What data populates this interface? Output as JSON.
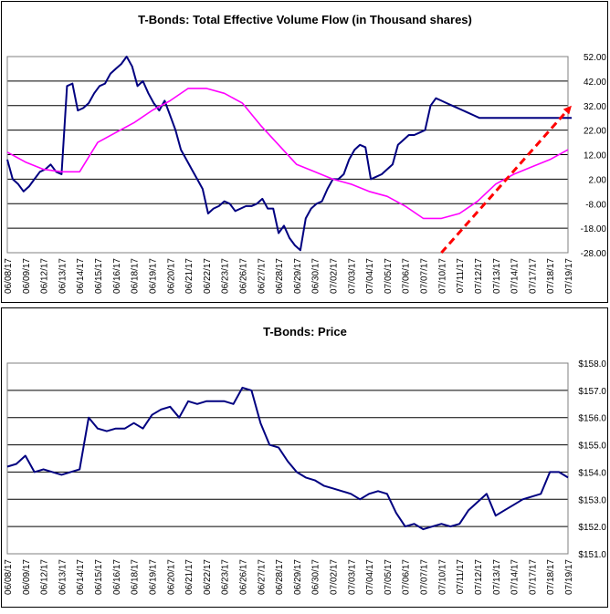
{
  "chart_data": [
    {
      "type": "line",
      "title": "T-Bonds: Total Effective Volume Flow (in Thousand shares)",
      "xlabel": "",
      "ylabel": "",
      "ylim": [
        -28,
        52
      ],
      "y_ticks": [
        "52.00",
        "42.00",
        "32.00",
        "22.00",
        "12.00",
        "2.00",
        "-8.00",
        "-18.00",
        "-28.00"
      ],
      "y_tick_values": [
        52,
        42,
        32,
        22,
        12,
        2,
        -8,
        -18,
        -28
      ],
      "y_axis_side": "right",
      "grid": "horizontal",
      "x_tick_labels": [
        "06/08/17",
        "06/09/17",
        "06/12/17",
        "06/13/17",
        "06/14/17",
        "06/15/17",
        "06/16/17",
        "06/18/17",
        "06/19/17",
        "06/20/17",
        "06/21/17",
        "06/22/17",
        "06/23/17",
        "06/26/17",
        "06/27/17",
        "06/28/17",
        "06/29/17",
        "06/30/17",
        "07/02/17",
        "07/03/17",
        "07/04/17",
        "07/05/17",
        "07/06/17",
        "07/07/17",
        "07/10/17",
        "07/11/17",
        "07/12/17",
        "07/13/17",
        "07/14/17",
        "07/17/17",
        "07/18/17",
        "07/19/17"
      ],
      "series": [
        {
          "color": "#000080",
          "x": [
            0,
            0.3,
            0.6,
            0.9,
            1.2,
            1.5,
            1.8,
            2.1,
            2.4,
            2.7,
            3,
            3.3,
            3.6,
            3.9,
            4.2,
            4.5,
            4.8,
            5.1,
            5.4,
            5.7,
            6,
            6.3,
            6.6,
            6.9,
            7.2,
            7.5,
            7.8,
            8.1,
            8.4,
            8.7,
            9,
            9.3,
            9.6,
            9.9,
            10.2,
            10.5,
            10.8,
            11.1,
            11.4,
            11.7,
            12,
            12.3,
            12.6,
            12.9,
            13.2,
            13.5,
            13.8,
            14.1,
            14.4,
            14.7,
            15,
            15.3,
            15.6,
            15.9,
            16.2,
            16.5,
            16.8,
            17.1,
            17.4,
            17.7,
            18,
            18.3,
            18.6,
            18.9,
            19.2,
            19.5,
            19.8,
            20.1,
            20.4,
            20.7,
            21,
            21.3,
            21.6,
            21.9,
            22.2,
            22.5,
            22.8,
            23.1,
            23.4,
            23.7,
            24,
            24.3,
            24.6,
            24.9,
            25.2,
            25.5,
            25.8,
            26.1,
            26.4,
            26.7,
            27,
            27.3,
            27.6,
            27.9,
            28.2,
            28.5,
            28.8,
            29.1,
            29.4,
            29.7,
            30,
            30.3,
            30.6,
            30.9,
            31.2
          ],
          "values": [
            10,
            2,
            0,
            -3,
            -1,
            2,
            5,
            6,
            8,
            5,
            4,
            40,
            41,
            30,
            31,
            33,
            37,
            40,
            41,
            45,
            47,
            49,
            52,
            48,
            40,
            42,
            37,
            33,
            30,
            34,
            28,
            22,
            14,
            10,
            6,
            2,
            -2,
            -12,
            -10,
            -9,
            -7,
            -8,
            -11,
            -10,
            -9,
            -9,
            -8,
            -6,
            -10,
            -10,
            -20,
            -17,
            -22,
            -25,
            -27,
            -14,
            -10,
            -8,
            -7,
            -2,
            2,
            2,
            4,
            10,
            14,
            16,
            15,
            2,
            3,
            4,
            6,
            8,
            16,
            18,
            20,
            20,
            21,
            22,
            32,
            35,
            34,
            33,
            32,
            31,
            30,
            29,
            28,
            27,
            27,
            27,
            27,
            27,
            27,
            27,
            27,
            27,
            27,
            27,
            27,
            27,
            27,
            27,
            27,
            27,
            27
          ]
        },
        {
          "color": "#ff00ff",
          "x": [
            0,
            1,
            2,
            3,
            4,
            5,
            6,
            7,
            8,
            9,
            10,
            11,
            12,
            13,
            14,
            15,
            16,
            17,
            18,
            19,
            20,
            21,
            22,
            23,
            24,
            25,
            26,
            27,
            28,
            29,
            30,
            31
          ],
          "values": [
            13,
            9,
            6,
            5,
            5,
            17,
            21,
            25,
            30,
            34,
            39,
            39,
            37,
            33,
            24,
            16,
            8,
            5,
            2,
            0,
            -3,
            -5,
            -9,
            -14,
            -14,
            -12,
            -7,
            0,
            4,
            7,
            10,
            14
          ]
        }
      ],
      "annotations": [
        {
          "type": "dashed-arrow",
          "color": "#ff0000",
          "from": [
            24.0,
            -28
          ],
          "to": [
            31.2,
            32
          ]
        }
      ]
    },
    {
      "type": "line",
      "title": "T-Bonds: Price",
      "xlabel": "",
      "ylabel": "",
      "ylim": [
        151,
        158
      ],
      "y_ticks": [
        "$158.0",
        "$157.0",
        "$156.0",
        "$155.0",
        "$154.0",
        "$153.0",
        "$152.0",
        "$151.0"
      ],
      "y_tick_values": [
        158,
        157,
        156,
        155,
        154,
        153,
        152,
        151
      ],
      "y_axis_side": "right",
      "grid": "horizontal",
      "x_tick_labels": [
        "06/08/17",
        "06/09/17",
        "06/12/17",
        "06/13/17",
        "06/14/17",
        "06/15/17",
        "06/16/17",
        "06/18/17",
        "06/19/17",
        "06/20/17",
        "06/21/17",
        "06/22/17",
        "06/23/17",
        "06/26/17",
        "06/27/17",
        "06/28/17",
        "06/29/17",
        "06/30/17",
        "07/02/17",
        "07/03/17",
        "07/04/17",
        "07/05/17",
        "07/06/17",
        "07/07/17",
        "07/10/17",
        "07/11/17",
        "07/12/17",
        "07/13/17",
        "07/14/17",
        "07/17/17",
        "07/18/17",
        "07/19/17"
      ],
      "series": [
        {
          "color": "#000080",
          "x": [
            0,
            0.5,
            1,
            1.5,
            2,
            2.5,
            3,
            3.5,
            4,
            4.5,
            5,
            5.5,
            6,
            6.5,
            7,
            7.5,
            8,
            8.5,
            9,
            9.5,
            10,
            10.5,
            11,
            11.5,
            12,
            12.5,
            13,
            13.5,
            14,
            14.5,
            15,
            15.5,
            16,
            16.5,
            17,
            17.5,
            18,
            18.5,
            19,
            19.5,
            20,
            20.5,
            21,
            21.5,
            22,
            22.5,
            23,
            23.5,
            24,
            24.5,
            25,
            25.5,
            26,
            26.5,
            27,
            27.5,
            28,
            28.5,
            29,
            29.5,
            30,
            30.5,
            31
          ],
          "values": [
            154.2,
            154.3,
            154.6,
            154.0,
            154.1,
            154.0,
            153.9,
            154.0,
            154.1,
            156.0,
            155.6,
            155.5,
            155.6,
            155.6,
            155.8,
            155.6,
            156.1,
            156.3,
            156.4,
            156.0,
            156.6,
            156.5,
            156.6,
            156.6,
            156.6,
            156.5,
            157.1,
            157.0,
            155.8,
            155.0,
            154.9,
            154.4,
            154.0,
            153.8,
            153.7,
            153.5,
            153.4,
            153.3,
            153.2,
            153.0,
            153.2,
            153.3,
            153.2,
            152.5,
            152.0,
            152.1,
            151.9,
            152.0,
            152.1,
            152.0,
            152.1,
            152.6,
            152.9,
            153.2,
            152.4,
            152.6,
            152.8,
            153.0,
            153.1,
            153.2,
            154.0,
            154.0,
            153.8
          ]
        }
      ]
    }
  ]
}
